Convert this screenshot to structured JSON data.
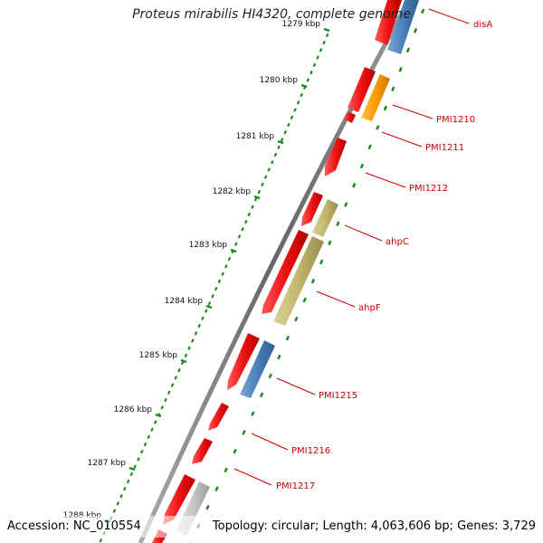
{
  "title": "Proteus mirabilis HI4320, complete genome",
  "footer": {
    "accession": "Accession: NC_010554",
    "summary": "Topology: circular; Length: 4,063,606 bp; Genes: 3,729"
  },
  "colors": {
    "gene_red": "#ee1111",
    "blue": "#4a80b8",
    "orange": "#ff9900",
    "olive": "#c2b66e",
    "grey": "#c8c8c8",
    "backbone": "#777777",
    "tick_green": "#1a8a1a",
    "label_red": "#cc0000"
  },
  "ticks": [
    {
      "label": "1279 kbp"
    },
    {
      "label": "1280 kbp"
    },
    {
      "label": "1281 kbp"
    },
    {
      "label": "1282 kbp"
    },
    {
      "label": "1283 kbp"
    },
    {
      "label": "1284 kbp"
    },
    {
      "label": "1285 kbp"
    },
    {
      "label": "1286 kbp"
    },
    {
      "label": "1287 kbp"
    },
    {
      "label": "1288 kbp"
    }
  ],
  "gene_labels": [
    {
      "name": "disA"
    },
    {
      "name": "PMI1210"
    },
    {
      "name": "PMI1211"
    },
    {
      "name": "PMI1212"
    },
    {
      "name": "ahpC"
    },
    {
      "name": "ahpF"
    },
    {
      "name": "PMI1215"
    },
    {
      "name": "PMI1216"
    },
    {
      "name": "PMI1217"
    }
  ]
}
